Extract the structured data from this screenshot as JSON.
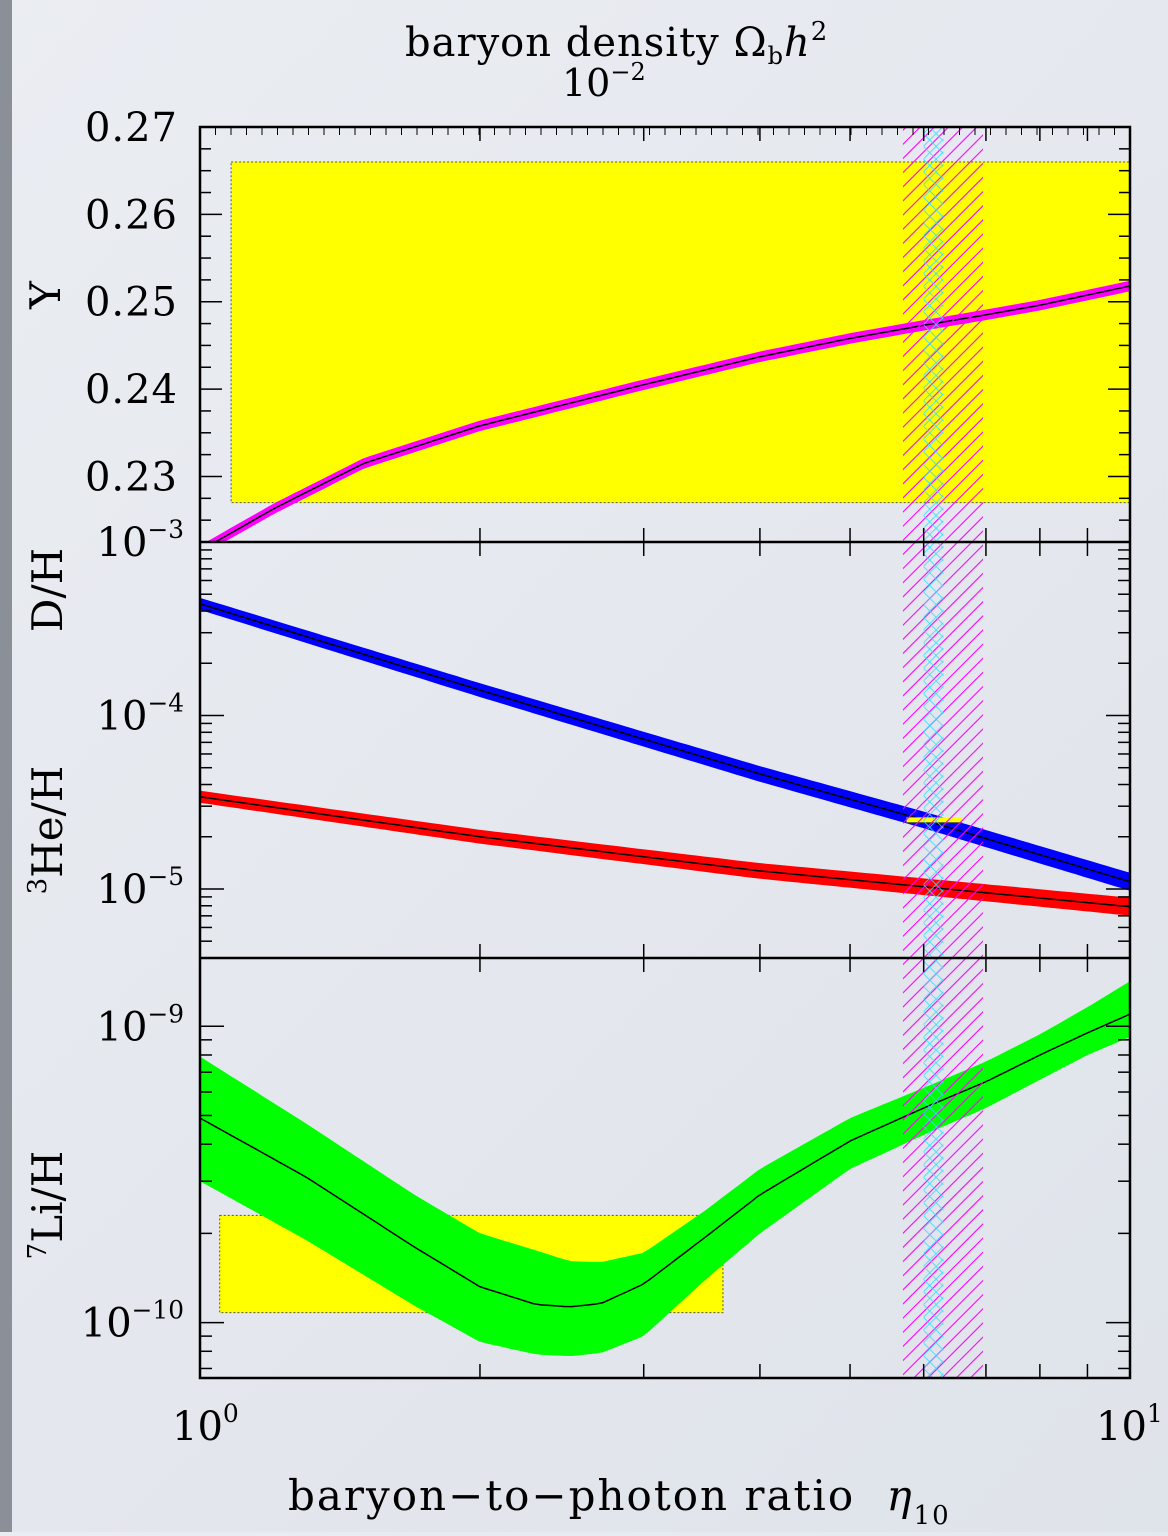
{
  "chart_data": {
    "type": "line",
    "x_axis": {
      "label_main": "baryon−to−photon ratio",
      "label_symbol": "η",
      "label_subscript": "10",
      "scale": "log",
      "range": [
        1,
        10
      ],
      "tick_labels": [
        {
          "value": 1,
          "base": "10",
          "exp": "0"
        },
        {
          "value": 10,
          "base": "10",
          "exp": "1"
        }
      ]
    },
    "top_axis": {
      "title_main": "baryon density Ω",
      "title_sub": "b",
      "title_h": "h",
      "title_exp": "2",
      "extra_label_base": "10",
      "extra_label_exp": "−2"
    },
    "panels": [
      {
        "id": "Y",
        "ylabel": "Y",
        "scale": "linear",
        "ylim": [
          0.2225,
          0.27
        ],
        "ticks": [
          {
            "value": 0.27,
            "label": "0.27"
          },
          {
            "value": 0.26,
            "label": "0.26"
          },
          {
            "value": 0.25,
            "label": "0.25"
          },
          {
            "value": 0.24,
            "label": "0.24"
          },
          {
            "value": 0.23,
            "label": "0.23"
          }
        ],
        "obs_box": {
          "x": [
            1.08,
            10
          ],
          "y": [
            0.227,
            0.266
          ],
          "color": "#ffff00"
        },
        "series": [
          {
            "color": "#ff00ff",
            "band_halfwidth": 0.0006,
            "x": [
              1,
              1.2,
              1.5,
              2,
              3,
              4,
              5,
              6,
              7,
              8,
              10
            ],
            "y": [
              0.2215,
              0.2263,
              0.2315,
              0.2358,
              0.2405,
              0.2437,
              0.2458,
              0.2473,
              0.2485,
              0.2496,
              0.2518
            ]
          }
        ]
      },
      {
        "id": "DHe3",
        "ylabels": [
          {
            "text": "D/H",
            "sup": ""
          },
          {
            "text": "He/H",
            "sup": "3"
          }
        ],
        "scale": "log",
        "ylim": [
          4e-06,
          0.001
        ],
        "ticks": [
          {
            "value": 0.001,
            "base": "10",
            "exp": "−3"
          },
          {
            "value": 0.0001,
            "base": "10",
            "exp": "−4"
          },
          {
            "value": 1e-05,
            "base": "10",
            "exp": "−5"
          }
        ],
        "obs_marker": {
          "x": [
            5.75,
            6.6
          ],
          "y": 2.5e-05,
          "color": "#ffff00"
        },
        "series": [
          {
            "name": "D/H",
            "color": "#0000ff",
            "band_factor": 1.045,
            "x": [
              1,
              2,
              4,
              6,
              10
            ],
            "y": [
              0.00044,
              0.00014,
              4.6e-05,
              2.5e-05,
              1.1e-05
            ]
          },
          {
            "name": "3He/H",
            "color": "#ff0000",
            "band_factor": 1.06,
            "x": [
              1,
              2,
              4,
              6,
              10
            ],
            "y": [
              3.4e-05,
              2e-05,
              1.27e-05,
              1.03e-05,
              7.9e-06
            ]
          }
        ]
      },
      {
        "id": "Li7",
        "ylabel_text": "Li/H",
        "ylabel_sup": "7",
        "scale": "log",
        "ylim": [
          6.5e-11,
          1.7e-09
        ],
        "ticks": [
          {
            "value": 1e-09,
            "base": "10",
            "exp": "−9"
          },
          {
            "value": 1e-10,
            "base": "10",
            "exp": "−10"
          }
        ],
        "obs_box": {
          "x": [
            1.05,
            3.65
          ],
          "y": [
            1.08e-10,
            2.3e-10
          ],
          "color": "#ffff00"
        },
        "series": [
          {
            "name": "7Li/H",
            "color": "#00ff00",
            "x": [
              1,
              1.3,
              1.7,
              2,
              2.3,
              2.5,
              2.7,
              3,
              3.5,
              4,
              5,
              6,
              7,
              8,
              9,
              10
            ],
            "y": [
              4.9e-10,
              3.1e-10,
              1.8e-10,
              1.32e-10,
              1.15e-10,
              1.13e-10,
              1.16e-10,
              1.35e-10,
              1.95e-10,
              2.7e-10,
              4.1e-10,
              5.3e-10,
              6.5e-10,
              8e-10,
              9.5e-10,
              1.1e-09
            ],
            "upper": [
              7.9e-10,
              4.7e-10,
              2.7e-10,
              2e-10,
              1.75e-10,
              1.61e-10,
              1.6e-10,
              1.72e-10,
              2.4e-10,
              3.3e-10,
              4.9e-10,
              6.2e-10,
              7.6e-10,
              9.4e-10,
              1.16e-09,
              1.42e-09
            ],
            "lower": [
              3e-10,
              1.9e-10,
              1.14e-10,
              8.6e-11,
              7.8e-11,
              7.7e-11,
              7.9e-11,
              9e-11,
              1.4e-10,
              2e-10,
              3.3e-10,
              4.3e-10,
              5.3e-10,
              6.6e-10,
              8e-10,
              9.2e-10
            ]
          }
        ]
      }
    ],
    "vertical_bands": [
      {
        "name": "wide",
        "x": [
          5.7,
          6.95
        ],
        "color": "#ff00ff",
        "pattern": "hatched"
      },
      {
        "name": "narrow",
        "x": [
          6.0,
          6.3
        ],
        "color": "#00ffff",
        "pattern": "cross-hatched"
      }
    ]
  }
}
